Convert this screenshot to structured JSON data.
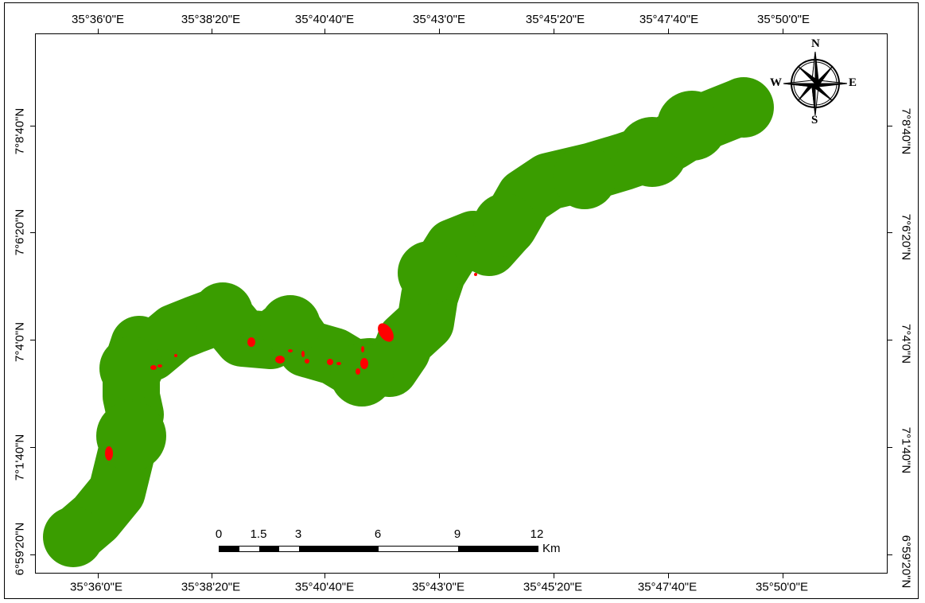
{
  "map": {
    "longitude_labels": [
      "35°36'0\"E",
      "35°38'20\"E",
      "35°40'40\"E",
      "35°43'0\"E",
      "35°45'20\"E",
      "35°47'40\"E",
      "35°50'0\"E"
    ],
    "latitude_labels": [
      "7°8'40\"N",
      "7°6'20\"N",
      "7°4'0\"N",
      "7°1'40\"N",
      "6°59'20\"N"
    ],
    "colors": {
      "buffer": "#3a9d00",
      "patch": "#ff0000",
      "frame": "#000000"
    }
  },
  "scale_bar": {
    "labels": [
      "0",
      "1.5",
      "3",
      "6",
      "9",
      "12"
    ],
    "unit": "Km"
  },
  "north_arrow": {
    "n": "N",
    "s": "S",
    "e": "E",
    "w": "W"
  }
}
